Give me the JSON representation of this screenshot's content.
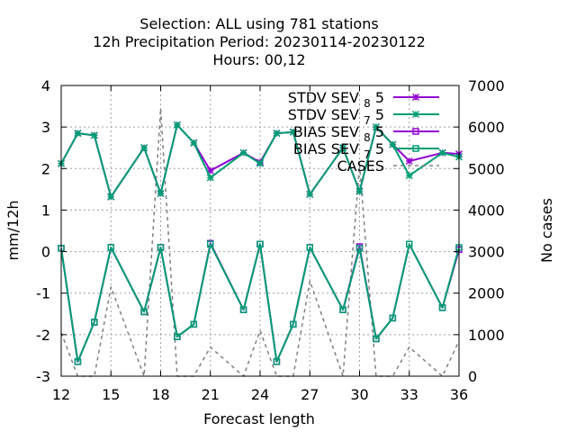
{
  "chart_data": {
    "type": "line",
    "title_lines": [
      "Selection: ALL using   781 stations",
      "12h Precipitation    Period: 20230114-20230122",
      "Hours:  00,12"
    ],
    "xlabel": "Forecast length",
    "ylabel": "mm/12h",
    "y2label": "No cases",
    "xlim": [
      12,
      36
    ],
    "ylim": [
      -3,
      4
    ],
    "y2lim": [
      0,
      7000
    ],
    "x_ticks": [
      12,
      15,
      18,
      21,
      24,
      27,
      30,
      33,
      36
    ],
    "y_ticks": [
      -3,
      -2,
      -1,
      0,
      1,
      2,
      3,
      4
    ],
    "y2_ticks": [
      0,
      1000,
      2000,
      3000,
      4000,
      5000,
      6000,
      7000
    ],
    "grid": true,
    "legend_position": "top-right",
    "x": [
      12,
      13,
      14,
      15,
      17,
      18,
      19,
      20,
      21,
      23,
      24,
      25,
      26,
      27,
      29,
      30,
      31,
      32,
      33,
      35,
      36
    ],
    "series": [
      {
        "name": "STDV SEV_8_5",
        "legend_main": "STDV SEV",
        "legend_sub": "8",
        "legend_tail": "5",
        "color": "#9400d3",
        "marker": "x",
        "axis": "y",
        "values": [
          2.12,
          2.85,
          2.8,
          1.32,
          2.5,
          1.4,
          3.05,
          2.62,
          1.95,
          2.38,
          2.15,
          2.85,
          2.88,
          1.38,
          2.5,
          1.45,
          3.0,
          2.58,
          2.18,
          2.38,
          2.35
        ]
      },
      {
        "name": "STDV SEV_7_5",
        "legend_main": "STDV SEV",
        "legend_sub": "7",
        "legend_tail": "5",
        "color": "#009e73",
        "marker": "x",
        "axis": "y",
        "values": [
          2.12,
          2.85,
          2.8,
          1.32,
          2.5,
          1.4,
          3.05,
          2.62,
          1.78,
          2.38,
          2.12,
          2.85,
          2.88,
          1.38,
          2.5,
          1.45,
          3.0,
          2.58,
          1.83,
          2.38,
          2.28
        ]
      },
      {
        "name": "BIAS SEV_8_5",
        "legend_main": "BIAS SEV",
        "legend_sub": "8",
        "legend_tail": "5",
        "color": "#9400d3",
        "marker": "square",
        "axis": "y",
        "values": [
          0.08,
          -2.65,
          -1.7,
          0.1,
          -1.45,
          0.1,
          -2.05,
          -1.75,
          0.2,
          -1.4,
          0.18,
          -2.65,
          -1.75,
          0.1,
          -1.4,
          0.12,
          -2.1,
          -1.6,
          0.18,
          -1.35,
          0.05
        ]
      },
      {
        "name": "BIAS SEV_7_5",
        "legend_main": "BIAS SEV",
        "legend_sub": "7",
        "legend_tail": "5",
        "color": "#009e73",
        "marker": "square",
        "axis": "y",
        "values": [
          0.08,
          -2.65,
          -1.7,
          0.1,
          -1.45,
          0.1,
          -2.05,
          -1.75,
          0.18,
          -1.4,
          0.18,
          -2.65,
          -1.75,
          0.1,
          -1.4,
          0.08,
          -2.1,
          -1.6,
          0.18,
          -1.35,
          0.1
        ]
      },
      {
        "name": "CASES",
        "legend_main": "CASES",
        "legend_sub": "",
        "legend_tail": "",
        "color": "#808080",
        "marker": "none",
        "dash": true,
        "axis": "y2",
        "values": [
          1050,
          0,
          0,
          2150,
          0,
          6450,
          0,
          0,
          700,
          0,
          1100,
          0,
          0,
          2300,
          0,
          5100,
          0,
          0,
          700,
          0,
          850
        ]
      }
    ]
  }
}
